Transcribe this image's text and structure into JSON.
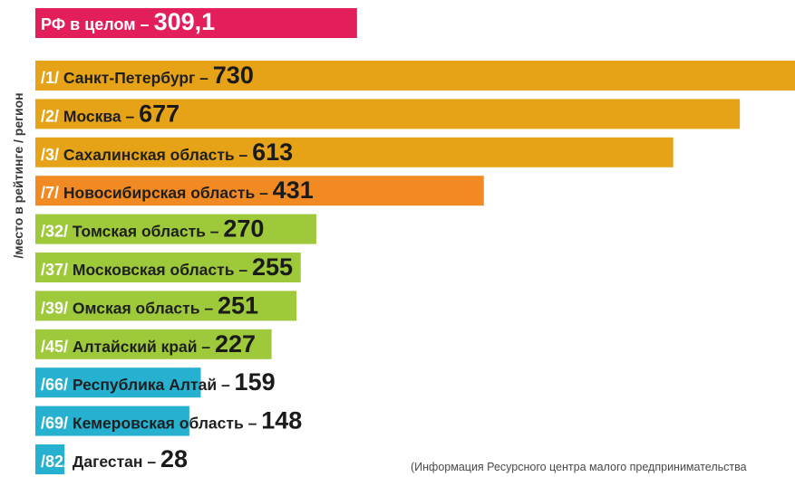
{
  "chart_data": {
    "type": "bar",
    "orientation": "horizontal",
    "ylabel": "/место в рейтинге / регион",
    "source_note": "(Информация Ресурсного центра малого предпринимательства",
    "total": {
      "label": "РФ в целом –",
      "value_text": "309,1",
      "value": 309.1,
      "color": "#e21e5b"
    },
    "categories": [
      "Санкт-Петербург",
      "Москва",
      "Сахалинская область",
      "Новосибирская область",
      "Томская область",
      "Московская область",
      "Омская область",
      "Алтайский край",
      "Республика Алтай",
      "Кемеровская область",
      "Дагестан"
    ],
    "ranks": [
      1,
      2,
      3,
      7,
      32,
      37,
      39,
      45,
      66,
      69,
      82
    ],
    "values": [
      730,
      677,
      613,
      431,
      270,
      255,
      251,
      227,
      159,
      148,
      28
    ],
    "colors": [
      "#e6a317",
      "#e6a317",
      "#e6a317",
      "#f18a22",
      "#9dc93b",
      "#9dc93b",
      "#9dc93b",
      "#9dc93b",
      "#27b1d1",
      "#27b1d1",
      "#27b1d1"
    ],
    "xlim": [
      0,
      730
    ],
    "grid": false,
    "legend": false
  }
}
